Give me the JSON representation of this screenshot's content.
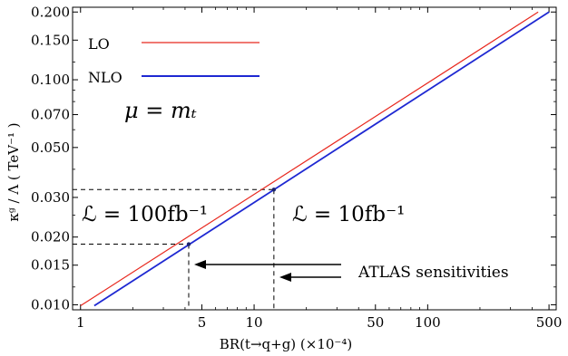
{
  "chart_data": {
    "type": "line",
    "xscale": "log",
    "yscale": "log",
    "xlim": [
      0.9,
      550
    ],
    "ylim": [
      0.0095,
      0.21
    ],
    "xlabel": "BR(t→q+g)  (×10⁻⁴)",
    "ylabel": "κᵍ / Λ ( TeV⁻¹ )",
    "xticks": [
      1,
      5,
      10,
      50,
      100,
      500
    ],
    "xtick_labels": [
      "1",
      "5",
      "10",
      "50",
      "100",
      "500"
    ],
    "yticks": [
      0.01,
      0.015,
      0.02,
      0.03,
      0.05,
      0.07,
      0.1,
      0.15,
      0.2
    ],
    "ytick_labels": [
      "0.010",
      "0.015",
      "0.020",
      "0.030",
      "0.050",
      "0.070",
      "0.100",
      "0.150",
      "0.200"
    ],
    "legend_position": "top-left",
    "series": [
      {
        "name": "LO",
        "color": "#e8281e",
        "x": [
          1.0,
          433.0
        ],
        "y": [
          0.0099,
          0.2
        ]
      },
      {
        "name": "NLO",
        "color": "#1e28d2",
        "x": [
          1.2,
          500.0
        ],
        "y": [
          0.0099,
          0.2
        ]
      }
    ],
    "markers": [
      {
        "x": 4.2,
        "y": 0.0186
      },
      {
        "x": 13.0,
        "y": 0.0325
      }
    ],
    "annotations": {
      "mu_label": "μ = mₜ",
      "lumi_100": "ℒ = 100fb⁻¹",
      "lumi_10": "ℒ = 10fb⁻¹",
      "atlas": "ATLAS sensitivities"
    }
  }
}
